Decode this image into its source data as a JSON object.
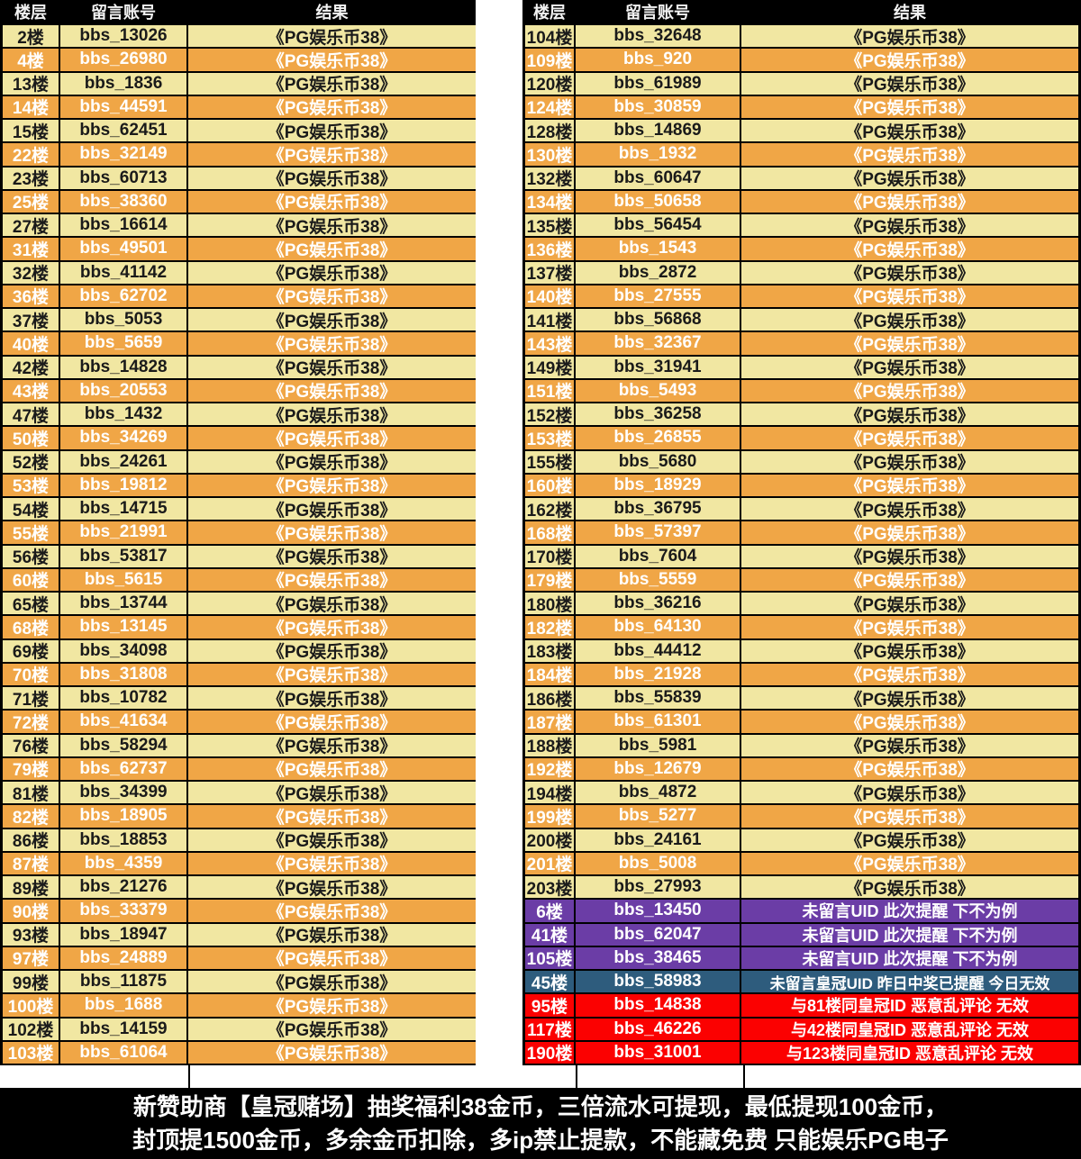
{
  "header": {
    "floor": "楼层",
    "account": "留言账号",
    "result": "结果"
  },
  "default_result": "《PG娱乐币38》",
  "colors": {
    "row_cream": "#f1e7a2",
    "row_orange": "#f0a646",
    "row_purple": "#6b3da6",
    "row_blue": "#2e5c7d",
    "row_red": "#fb0101",
    "header_bg": "#000000",
    "header_text": "#f2f2f2",
    "text_dark": "#1a1a1a",
    "text_light": "#ffffff",
    "footer_bg": "#000000",
    "footer_text": "#ffffff"
  },
  "tables": {
    "left": {
      "rows": [
        {
          "floor": "2楼",
          "account": "bbs_13026"
        },
        {
          "floor": "4楼",
          "account": "bbs_26980"
        },
        {
          "floor": "13楼",
          "account": "bbs_1836"
        },
        {
          "floor": "14楼",
          "account": "bbs_44591"
        },
        {
          "floor": "15楼",
          "account": "bbs_62451"
        },
        {
          "floor": "22楼",
          "account": "bbs_32149"
        },
        {
          "floor": "23楼",
          "account": "bbs_60713"
        },
        {
          "floor": "25楼",
          "account": "bbs_38360"
        },
        {
          "floor": "27楼",
          "account": "bbs_16614"
        },
        {
          "floor": "31楼",
          "account": "bbs_49501"
        },
        {
          "floor": "32楼",
          "account": "bbs_41142"
        },
        {
          "floor": "36楼",
          "account": "bbs_62702"
        },
        {
          "floor": "37楼",
          "account": "bbs_5053"
        },
        {
          "floor": "40楼",
          "account": "bbs_5659"
        },
        {
          "floor": "42楼",
          "account": "bbs_14828"
        },
        {
          "floor": "43楼",
          "account": "bbs_20553"
        },
        {
          "floor": "47楼",
          "account": "bbs_1432"
        },
        {
          "floor": "50楼",
          "account": "bbs_34269"
        },
        {
          "floor": "52楼",
          "account": "bbs_24261"
        },
        {
          "floor": "53楼",
          "account": "bbs_19812"
        },
        {
          "floor": "54楼",
          "account": "bbs_14715"
        },
        {
          "floor": "55楼",
          "account": "bbs_21991"
        },
        {
          "floor": "56楼",
          "account": "bbs_53817"
        },
        {
          "floor": "60楼",
          "account": "bbs_5615"
        },
        {
          "floor": "65楼",
          "account": "bbs_13744"
        },
        {
          "floor": "68楼",
          "account": "bbs_13145"
        },
        {
          "floor": "69楼",
          "account": "bbs_34098"
        },
        {
          "floor": "70楼",
          "account": "bbs_31808"
        },
        {
          "floor": "71楼",
          "account": "bbs_10782"
        },
        {
          "floor": "72楼",
          "account": "bbs_41634"
        },
        {
          "floor": "76楼",
          "account": "bbs_58294"
        },
        {
          "floor": "79楼",
          "account": "bbs_62737"
        },
        {
          "floor": "81楼",
          "account": "bbs_34399"
        },
        {
          "floor": "82楼",
          "account": "bbs_18905"
        },
        {
          "floor": "86楼",
          "account": "bbs_18853"
        },
        {
          "floor": "87楼",
          "account": "bbs_4359"
        },
        {
          "floor": "89楼",
          "account": "bbs_21276"
        },
        {
          "floor": "90楼",
          "account": "bbs_33379"
        },
        {
          "floor": "93楼",
          "account": "bbs_18947"
        },
        {
          "floor": "97楼",
          "account": "bbs_24889"
        },
        {
          "floor": "99楼",
          "account": "bbs_11875"
        },
        {
          "floor": "100楼",
          "account": "bbs_1688"
        },
        {
          "floor": "102楼",
          "account": "bbs_14159"
        },
        {
          "floor": "103楼",
          "account": "bbs_61064"
        }
      ]
    },
    "right": {
      "rows": [
        {
          "floor": "104楼",
          "account": "bbs_32648"
        },
        {
          "floor": "109楼",
          "account": "bbs_920"
        },
        {
          "floor": "120楼",
          "account": "bbs_61989"
        },
        {
          "floor": "124楼",
          "account": "bbs_30859"
        },
        {
          "floor": "128楼",
          "account": "bbs_14869"
        },
        {
          "floor": "130楼",
          "account": "bbs_1932"
        },
        {
          "floor": "132楼",
          "account": "bbs_60647"
        },
        {
          "floor": "134楼",
          "account": "bbs_50658"
        },
        {
          "floor": "135楼",
          "account": "bbs_56454"
        },
        {
          "floor": "136楼",
          "account": "bbs_1543"
        },
        {
          "floor": "137楼",
          "account": "bbs_2872"
        },
        {
          "floor": "140楼",
          "account": "bbs_27555"
        },
        {
          "floor": "141楼",
          "account": "bbs_56868"
        },
        {
          "floor": "143楼",
          "account": "bbs_32367"
        },
        {
          "floor": "149楼",
          "account": "bbs_31941"
        },
        {
          "floor": "151楼",
          "account": "bbs_5493"
        },
        {
          "floor": "152楼",
          "account": "bbs_36258"
        },
        {
          "floor": "153楼",
          "account": "bbs_26855"
        },
        {
          "floor": "155楼",
          "account": "bbs_5680"
        },
        {
          "floor": "160楼",
          "account": "bbs_18929"
        },
        {
          "floor": "162楼",
          "account": "bbs_36795"
        },
        {
          "floor": "168楼",
          "account": "bbs_57397"
        },
        {
          "floor": "170楼",
          "account": "bbs_7604"
        },
        {
          "floor": "179楼",
          "account": "bbs_5559"
        },
        {
          "floor": "180楼",
          "account": "bbs_36216"
        },
        {
          "floor": "182楼",
          "account": "bbs_64130"
        },
        {
          "floor": "183楼",
          "account": "bbs_44412"
        },
        {
          "floor": "184楼",
          "account": "bbs_21928"
        },
        {
          "floor": "186楼",
          "account": "bbs_55839"
        },
        {
          "floor": "187楼",
          "account": "bbs_61301"
        },
        {
          "floor": "188楼",
          "account": "bbs_5981"
        },
        {
          "floor": "192楼",
          "account": "bbs_12679"
        },
        {
          "floor": "194楼",
          "account": "bbs_4872"
        },
        {
          "floor": "199楼",
          "account": "bbs_5277"
        },
        {
          "floor": "200楼",
          "account": "bbs_24161"
        },
        {
          "floor": "201楼",
          "account": "bbs_5008"
        },
        {
          "floor": "203楼",
          "account": "bbs_27993"
        },
        {
          "floor": "6楼",
          "account": "bbs_13450",
          "status": "no_uid",
          "result": "未留言UID 此次提醒 下不为例"
        },
        {
          "floor": "41楼",
          "account": "bbs_62047",
          "status": "no_uid",
          "result": "未留言UID 此次提醒 下不为例"
        },
        {
          "floor": "105楼",
          "account": "bbs_38465",
          "status": "no_uid",
          "result": "未留言UID 此次提醒 下不为例"
        },
        {
          "floor": "45楼",
          "account": "bbs_58983",
          "status": "crown_reminder",
          "result": "未留言皇冠UID 昨日中奖已提醒 今日无效"
        },
        {
          "floor": "95楼",
          "account": "bbs_14838",
          "status": "invalid_dup",
          "result": "与81楼同皇冠ID 恶意乱评论 无效"
        },
        {
          "floor": "117楼",
          "account": "bbs_46226",
          "status": "invalid_dup",
          "result": "与42楼同皇冠ID 恶意乱评论 无效"
        },
        {
          "floor": "190楼",
          "account": "bbs_31001",
          "status": "invalid_dup",
          "result": "与123楼同皇冠ID 恶意乱评论 无效"
        }
      ]
    }
  },
  "footer": {
    "line1": "新赞助商【皇冠赌场】抽奖福利38金币，三倍流水可提现，最低提现100金币，",
    "line2": "封顶提1500金币，多余金币扣除，多ip禁止提款，不能藏免费 只能娱乐PG电子"
  }
}
